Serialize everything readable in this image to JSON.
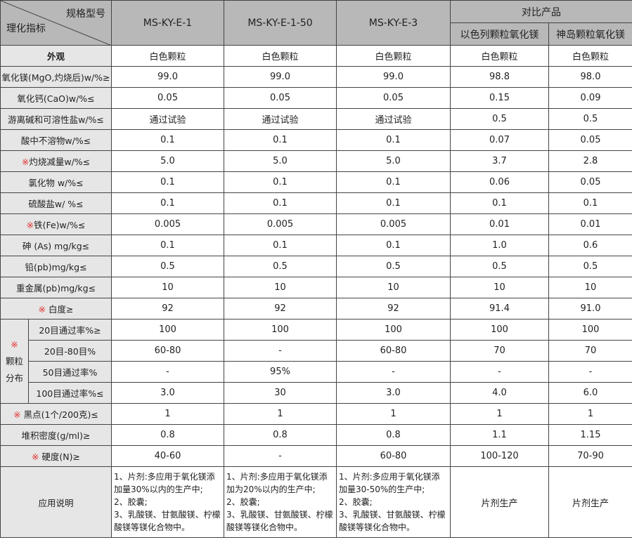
{
  "mark": "※",
  "header": {
    "spec_label": "规格型号",
    "index_label": "理化指标",
    "models": [
      "MS-KY-E-1",
      "MS-KY-E-1-50",
      "MS-KY-E-3"
    ],
    "compare_label": "对比产品",
    "compare_products": [
      "以色列颗粒氧化镁",
      "神岛颗粒氧化镁"
    ]
  },
  "rows": [
    {
      "label": "外观",
      "marked": false,
      "bold": true,
      "values": [
        "白色颗粒",
        "白色颗粒",
        "白色颗粒",
        "白色颗粒",
        "白色颗粒"
      ]
    },
    {
      "label": "氧化镁(MgO,灼烧后)w/%≥",
      "marked": false,
      "values": [
        "99.0",
        "99.0",
        "99.0",
        "98.8",
        "98.0"
      ]
    },
    {
      "label": "氧化钙(CaO)w/%≤",
      "marked": false,
      "values": [
        "0.05",
        "0.05",
        "0.05",
        "0.15",
        "0.09"
      ]
    },
    {
      "label": "游离碱和可溶性盐w/%≤",
      "marked": false,
      "values": [
        "通过试验",
        "通过试验",
        "通过试验",
        "0.5",
        "0.5"
      ]
    },
    {
      "label": "酸中不溶物w/%≤",
      "marked": false,
      "values": [
        "0.1",
        "0.1",
        "0.1",
        "0.07",
        "0.05"
      ]
    },
    {
      "label": "灼烧减量w/%≤",
      "marked": true,
      "values": [
        "5.0",
        "5.0",
        "5.0",
        "3.7",
        "2.8"
      ]
    },
    {
      "label": "氯化物 w/%≤",
      "marked": false,
      "values": [
        "0.1",
        "0.1",
        "0.1",
        "0.06",
        "0.05"
      ]
    },
    {
      "label": "硫酸盐w/ %≤",
      "marked": false,
      "values": [
        "0.1",
        "0.1",
        "0.1",
        "0.1",
        "0.1"
      ]
    },
    {
      "label": "铁(Fe)w/%≤",
      "marked": true,
      "values": [
        "0.005",
        "0.005",
        "0.005",
        "0.01",
        "0.01"
      ]
    },
    {
      "label": "砷 (As) mg/kg≤",
      "marked": false,
      "values": [
        "0.1",
        "0.1",
        "0.1",
        "1.0",
        "0.6"
      ]
    },
    {
      "label": "铅(pb)mg/kg≤",
      "marked": false,
      "values": [
        "0.5",
        "0.5",
        "0.5",
        "0.5",
        "0.5"
      ]
    },
    {
      "label": "重金属(pb)mg/kg≤",
      "marked": false,
      "values": [
        "10",
        "10",
        "10",
        "10",
        "10"
      ]
    },
    {
      "label": " 白度≥",
      "marked": true,
      "values": [
        "92",
        "92",
        "92",
        "91.4",
        "91.0"
      ]
    }
  ],
  "particle": {
    "group_label_1": "颗粒",
    "group_label_2": "分布",
    "rows": [
      {
        "label": "20目通过率%≥",
        "values": [
          "100",
          "100",
          "100",
          "100",
          "100"
        ]
      },
      {
        "label": "20目-80目%",
        "values": [
          "60-80",
          "-",
          "60-80",
          "70",
          "70"
        ]
      },
      {
        "label": "50目通过率%",
        "values": [
          "-",
          "95%",
          "-",
          "-",
          "-"
        ]
      },
      {
        "label": "100目通过率%≤",
        "values": [
          "3.0",
          "30",
          "3.0",
          "4.0",
          "6.0"
        ]
      }
    ]
  },
  "rows2": [
    {
      "label": " 黑点(1个/200克)≤",
      "marked": true,
      "values": [
        "1",
        "1",
        "1",
        "1",
        "1"
      ]
    },
    {
      "label": "堆积密度(g/ml)≥",
      "marked": false,
      "values": [
        "0.8",
        "0.8",
        "0.8",
        "1.1",
        "1.15"
      ]
    },
    {
      "label": " 硬度(N)≥",
      "marked": true,
      "values": [
        "40-60",
        "-",
        "60-80",
        "100-120",
        "70-90"
      ]
    }
  ],
  "application": {
    "label": "应用说明",
    "values": [
      "1、片剂:多应用于氧化镁添加量30%以内的生产中;\n2、胶囊;\n3、乳酸镁、甘氨酸镁、柠檬酸镁等镁化合物中。",
      "1、片剂:多应用于氧化镁添加为20%以内的生产中;\n2、胶囊;\n3、乳酸镁、甘氨酸镁、柠檬酸镁等镁化合物中。",
      "1、片剂:多应用于氧化镁添加量30-50%的生产中;\n2、胶囊;\n3、乳酸镁、甘氨酸镁、柠檬酸镁等镁化合物中。",
      "片剂生产",
      "片剂生产"
    ]
  }
}
